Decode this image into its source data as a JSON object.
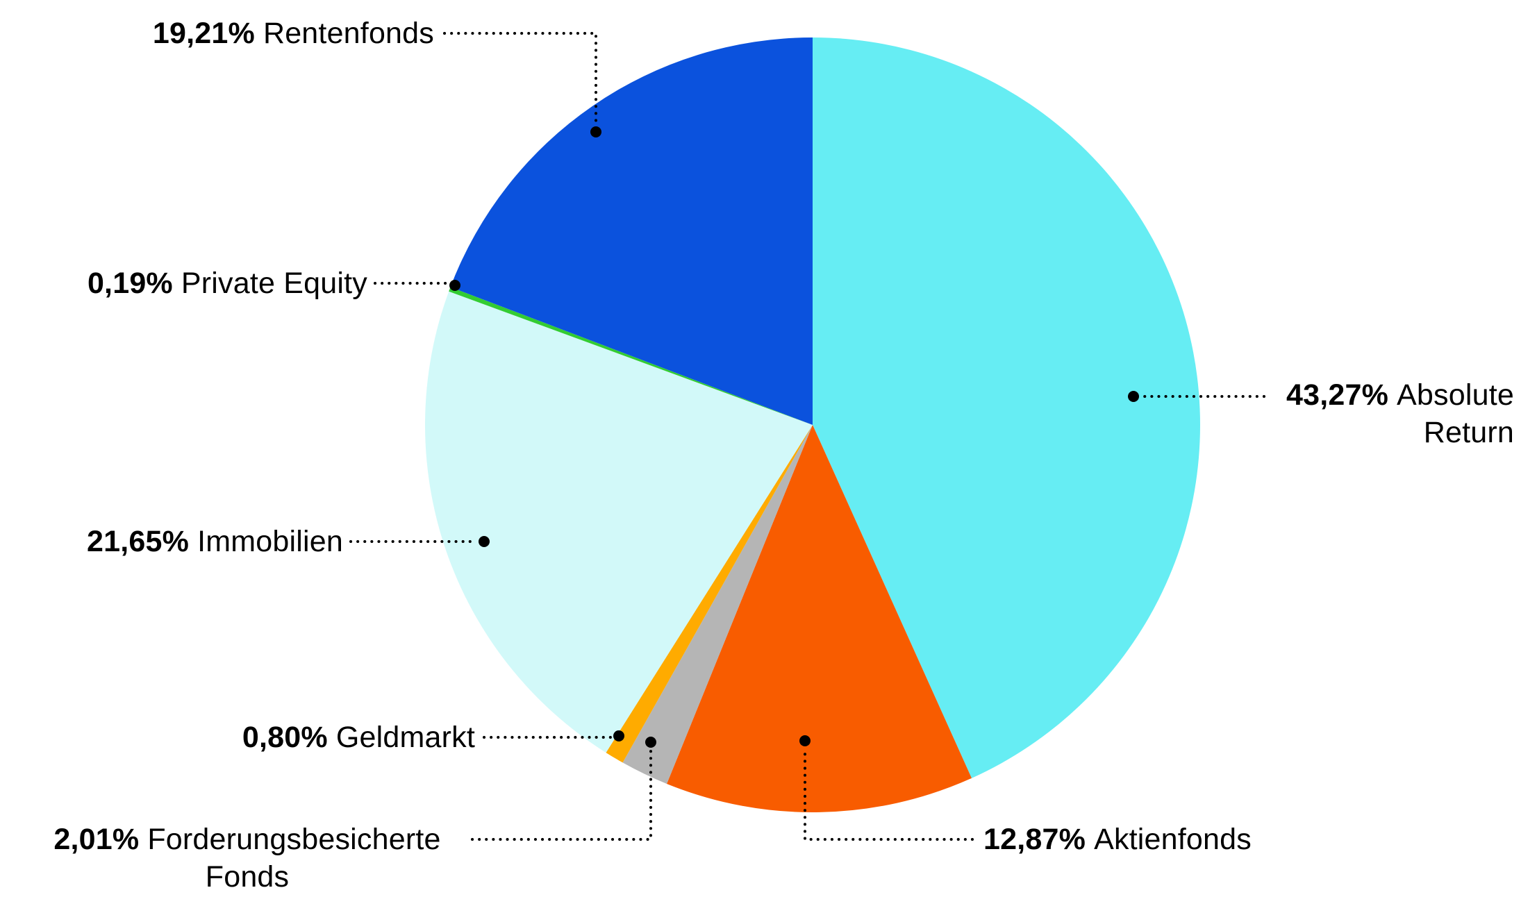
{
  "chart_data": {
    "type": "pie",
    "title": "",
    "start_angle_deg": 0,
    "direction": "clockwise",
    "legend_position": "none",
    "label_style": "outside-callouts-dotted-leaders",
    "background_color": "#ffffff",
    "text_color": "#000000",
    "slices": [
      {
        "name": "Absolute Return",
        "pct_label": "43,27%",
        "value": 43.27,
        "color": "#66EDF3"
      },
      {
        "name": "Aktienfonds",
        "pct_label": "12,87%",
        "value": 12.87,
        "color": "#F85C00"
      },
      {
        "name": "Forderungsbesicherte Fonds",
        "pct_label": "2,01%",
        "value": 2.01,
        "color": "#B5B5B5"
      },
      {
        "name": "Geldmarkt",
        "pct_label": "0,80%",
        "value": 0.8,
        "color": "#FFAB00"
      },
      {
        "name": "Immobilien",
        "pct_label": "21,65%",
        "value": 21.65,
        "color": "#D2F9F9"
      },
      {
        "name": "Private Equity",
        "pct_label": "0,19%",
        "value": 0.19,
        "color": "#33CC33"
      },
      {
        "name": "Rentenfonds",
        "pct_label": "19,21%",
        "value": 19.21,
        "color": "#0B52DD"
      }
    ]
  }
}
